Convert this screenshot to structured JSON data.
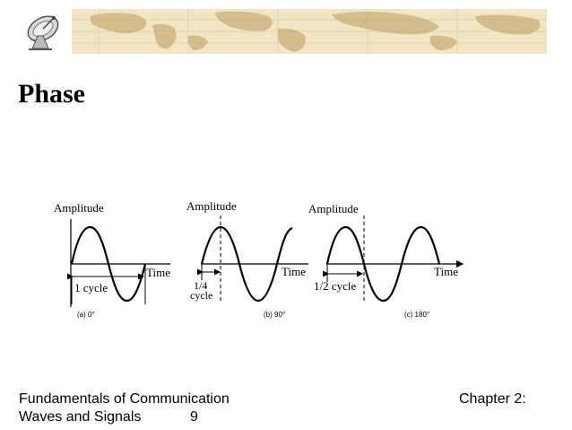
{
  "header": {
    "logo_icon": "satellite-dish-icon",
    "banner_color": "#f2e5c4",
    "map_color": "#c9b07a"
  },
  "slide": {
    "title": "Phase"
  },
  "diagrams": [
    {
      "amplitude_label": "Amplitude",
      "time_label": "Time",
      "cycle_label": "1 cycle",
      "caption": "(a) 0°",
      "phase_degrees": 0
    },
    {
      "amplitude_label": "Amplitude",
      "time_label": "Time",
      "cycle_label_line1": "1/4",
      "cycle_label_line2": "cycle",
      "caption": "(b) 90°",
      "phase_degrees": 90
    },
    {
      "amplitude_label": "Amplitude",
      "time_label": "Time",
      "cycle_label": "1/2 cycle",
      "caption": "(c) 180°",
      "phase_degrees": 180
    }
  ],
  "footer": {
    "left_line1": "Fundamentals of Communication",
    "left_line2": "Waves and Signals",
    "page_number": "9",
    "right": "Chapter 2:"
  }
}
